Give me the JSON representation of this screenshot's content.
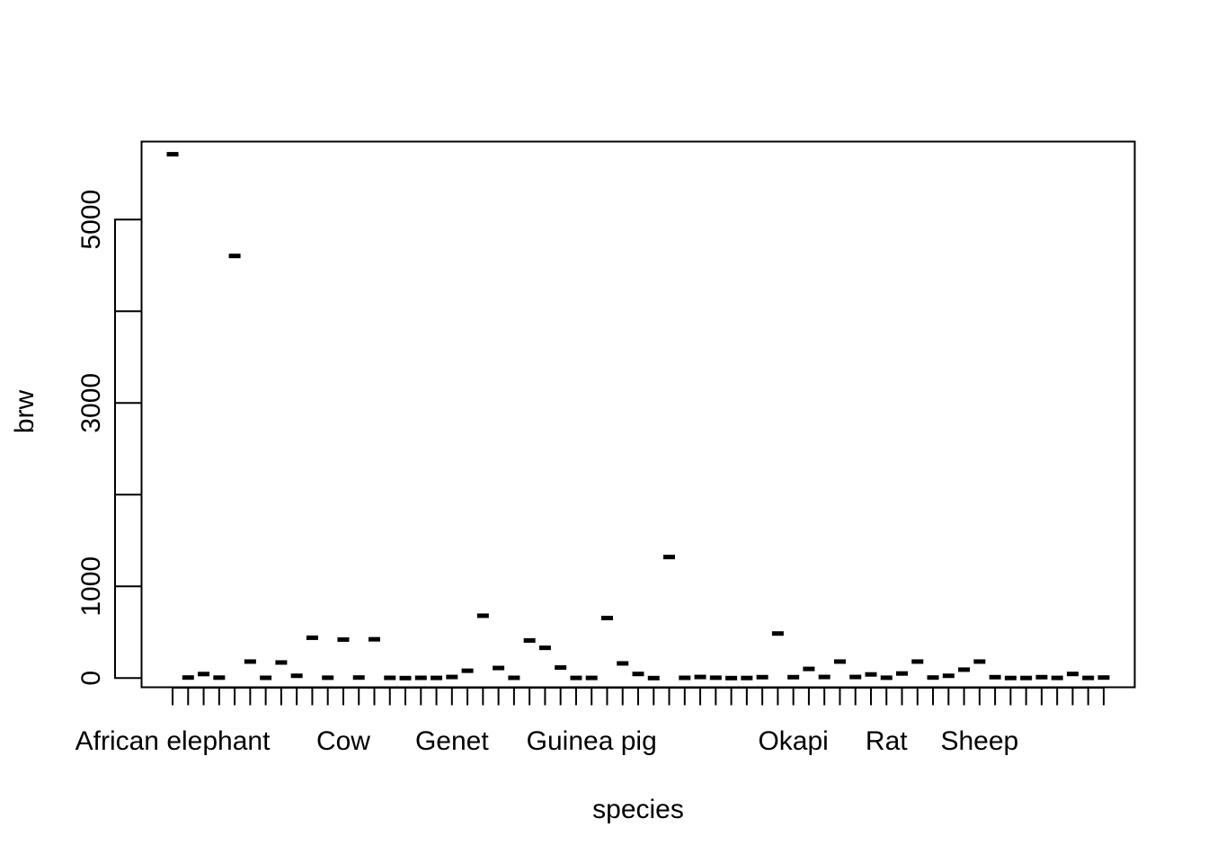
{
  "chart_data": {
    "type": "boxplot",
    "xlabel": "species",
    "ylabel": "brw",
    "ylim": [
      -100,
      5850
    ],
    "y_ticks": [
      0,
      1000,
      2000,
      3000,
      4000,
      5000
    ],
    "y_tick_labels": [
      "0",
      "1000",
      "",
      "3000",
      "",
      "5000"
    ],
    "x_tick_labels": [
      {
        "index": 1,
        "label": "African elephant"
      },
      {
        "index": 12,
        "label": "Cow"
      },
      {
        "index": 19,
        "label": "Genet"
      },
      {
        "index": 28,
        "label": "Guinea pig"
      },
      {
        "index": 41,
        "label": "Okapi"
      },
      {
        "index": 47,
        "label": "Rat"
      },
      {
        "index": 53,
        "label": "Sheep"
      }
    ],
    "values": [
      5712,
      6,
      44,
      5,
      4603,
      180,
      3,
      170,
      25,
      440,
      4,
      420,
      6,
      423,
      3,
      0,
      3,
      2,
      12,
      80,
      680,
      110,
      3,
      410,
      330,
      115,
      2,
      2,
      655,
      160,
      45,
      0,
      1320,
      3,
      12,
      4,
      0,
      1,
      10,
      486,
      10,
      100,
      12,
      180,
      12,
      40,
      4,
      50,
      180,
      6,
      25,
      92,
      180,
      10,
      1,
      1,
      10,
      2,
      45,
      2,
      6
    ],
    "colors": {
      "foreground": "#000000",
      "background": "#ffffff"
    }
  }
}
